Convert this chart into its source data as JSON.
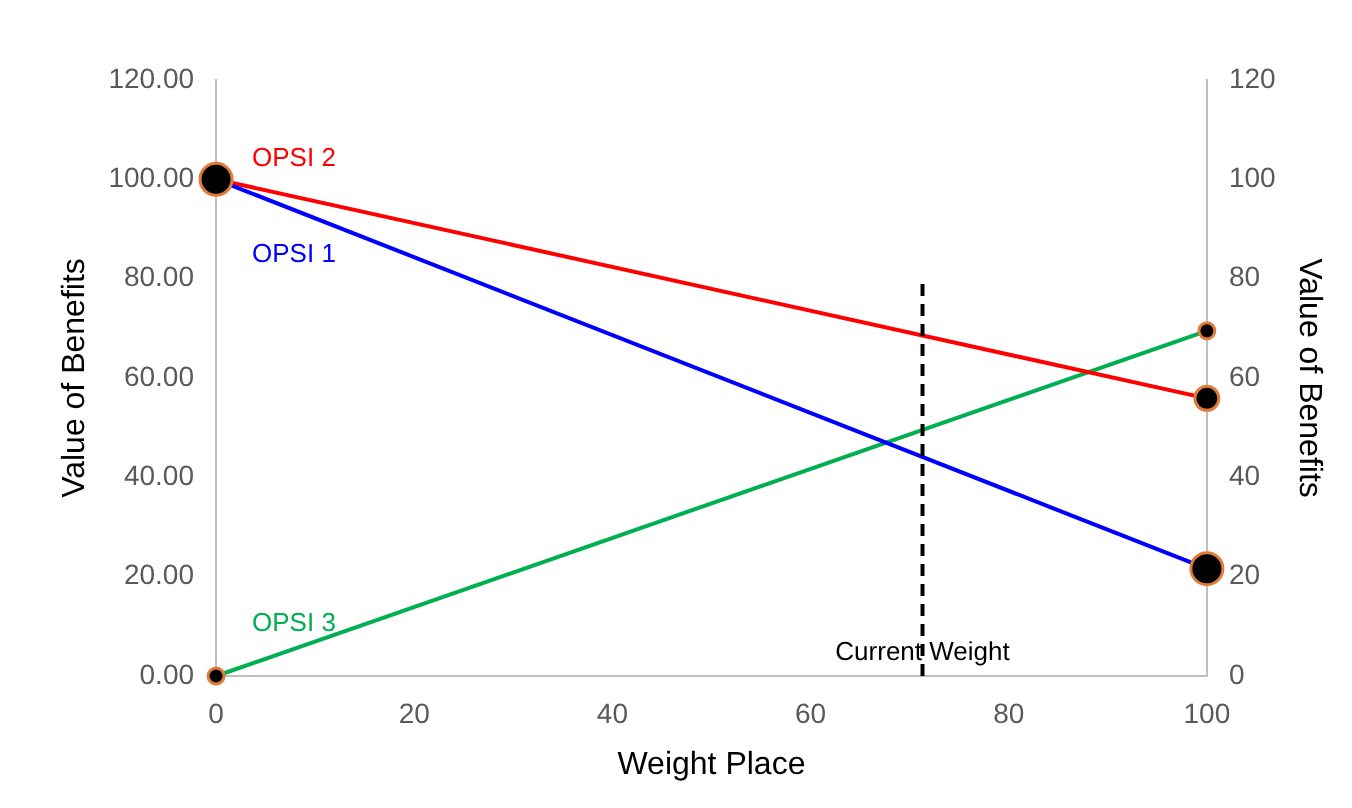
{
  "chart_data": {
    "type": "line",
    "xlabel": "Weight Place",
    "ylabel": "Value of Benefits",
    "y2label": "Value of Benefits",
    "x": [
      0,
      100
    ],
    "xlim": [
      0,
      100
    ],
    "xticks": [
      0,
      20,
      40,
      60,
      80,
      100
    ],
    "ylim": [
      0,
      120
    ],
    "yticks": [
      {
        "value": 0,
        "label": "0.00"
      },
      {
        "value": 20,
        "label": "20.00"
      },
      {
        "value": 40,
        "label": "40.00"
      },
      {
        "value": 60,
        "label": "60.00"
      },
      {
        "value": 80,
        "label": "80.00"
      },
      {
        "value": 100,
        "label": "100.00"
      },
      {
        "value": 120,
        "label": "120.00"
      }
    ],
    "y2lim": [
      0,
      120
    ],
    "y2ticks": [
      0,
      20,
      40,
      60,
      80,
      100,
      120
    ],
    "grid": false,
    "legend": false,
    "marker": "circle",
    "line_style": "solid",
    "series": [
      {
        "name": "OPSI 1",
        "color": "#0000ff",
        "values": [
          100,
          21.6
        ]
      },
      {
        "name": "OPSI 2",
        "color": "#ff0000",
        "values": [
          100,
          55.9
        ]
      },
      {
        "name": "OPSI 3",
        "color": "#00b050",
        "values": [
          0,
          69.5
        ]
      }
    ],
    "ref_lines": [
      {
        "axis": "x",
        "value": 71.3,
        "label": "Current Weight",
        "color": "#000000",
        "line_style": "dashed"
      }
    ]
  }
}
